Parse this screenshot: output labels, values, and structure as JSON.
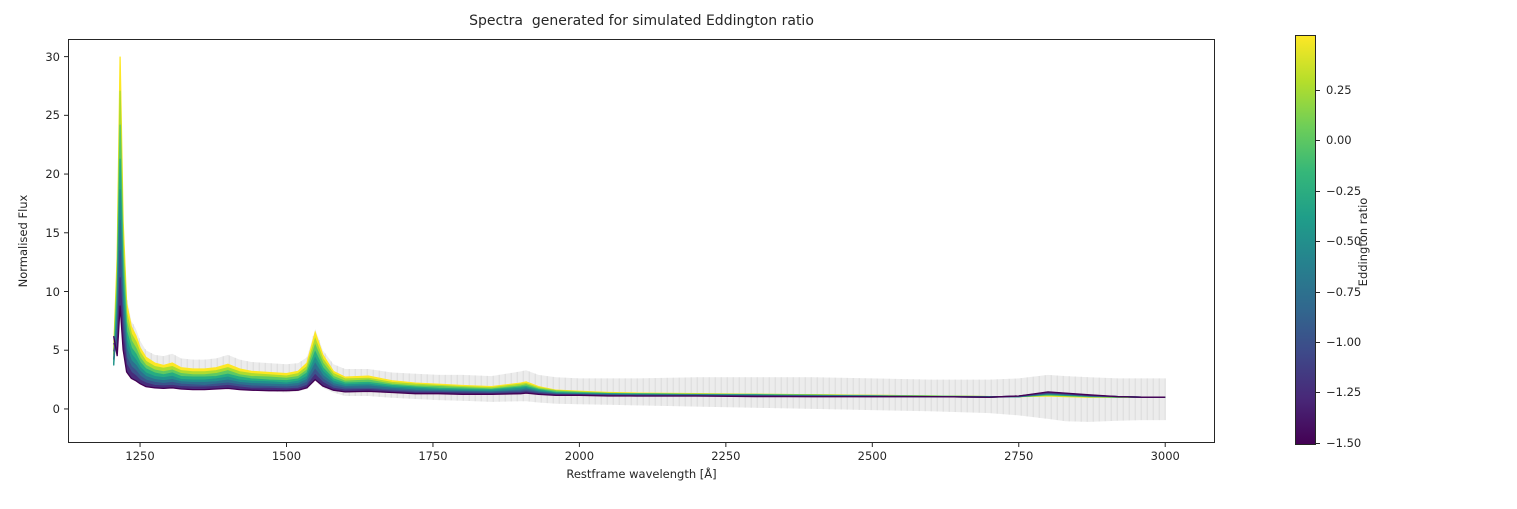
{
  "chart_data": {
    "type": "line",
    "title": "Spectra  generated for simulated Eddington ratio",
    "xlabel": "Restframe wavelength [Å]",
    "ylabel": "Normalised Flux",
    "xlim": [
      1127,
      3085
    ],
    "ylim": [
      -2.9,
      31.5
    ],
    "grid": false,
    "x_ticks": [
      1250,
      1500,
      1750,
      2000,
      2250,
      2500,
      2750,
      3000
    ],
    "y_ticks": [
      0,
      5,
      10,
      15,
      20,
      25,
      30
    ],
    "wavelengths": [
      1205,
      1211,
      1216,
      1221,
      1227,
      1235,
      1243,
      1250,
      1260,
      1275,
      1290,
      1305,
      1320,
      1340,
      1360,
      1380,
      1400,
      1420,
      1440,
      1470,
      1500,
      1520,
      1535,
      1549,
      1562,
      1580,
      1600,
      1640,
      1680,
      1720,
      1760,
      1800,
      1850,
      1900,
      1909,
      1930,
      1960,
      2000,
      2050,
      2100,
      2200,
      2300,
      2400,
      2500,
      2600,
      2700,
      2750,
      2800,
      2830,
      2870,
      2920,
      2960,
      3000
    ],
    "series": [
      {
        "name": "Eddington ratio 0.50",
        "eddington_ratio": 0.5,
        "color": "#fde725",
        "flux": [
          5.0,
          13.0,
          30.0,
          16.0,
          9.0,
          7.0,
          6.2,
          5.2,
          4.4,
          3.9,
          3.7,
          3.9,
          3.5,
          3.4,
          3.4,
          3.5,
          3.8,
          3.4,
          3.2,
          3.1,
          3.0,
          3.2,
          3.9,
          6.5,
          4.6,
          3.2,
          2.7,
          2.8,
          2.4,
          2.2,
          2.1,
          2.0,
          1.9,
          2.2,
          2.3,
          1.9,
          1.6,
          1.5,
          1.4,
          1.35,
          1.3,
          1.25,
          1.2,
          1.15,
          1.1,
          1.05,
          1.05,
          1.1,
          1.05,
          1.0,
          1.0,
          1.0,
          1.0
        ]
      },
      {
        "name": "Eddington ratio 0.25",
        "eddington_ratio": 0.25,
        "color": "#addc30",
        "flux": [
          4.6,
          11.8,
          27.1,
          14.5,
          8.2,
          6.4,
          5.7,
          4.8,
          4.05,
          3.6,
          3.45,
          3.6,
          3.25,
          3.15,
          3.15,
          3.25,
          3.5,
          3.15,
          3.0,
          2.9,
          2.8,
          3.0,
          3.6,
          5.95,
          4.25,
          3.0,
          2.55,
          2.6,
          2.25,
          2.1,
          2.0,
          1.9,
          1.8,
          2.1,
          2.15,
          1.8,
          1.55,
          1.45,
          1.35,
          1.3,
          1.25,
          1.25,
          1.2,
          1.15,
          1.1,
          1.05,
          1.05,
          1.15,
          1.1,
          1.05,
          1.0,
          1.0,
          1.0
        ]
      },
      {
        "name": "Eddington ratio 0.00",
        "eddington_ratio": 0.0,
        "color": "#5ec962",
        "flux": [
          4.2,
          10.6,
          24.2,
          13.0,
          7.4,
          5.8,
          5.15,
          4.35,
          3.7,
          3.3,
          3.15,
          3.3,
          3.0,
          2.9,
          2.9,
          3.0,
          3.25,
          2.9,
          2.75,
          2.7,
          2.6,
          2.75,
          3.3,
          5.4,
          3.9,
          2.75,
          2.35,
          2.45,
          2.1,
          1.95,
          1.9,
          1.8,
          1.7,
          1.95,
          2.05,
          1.7,
          1.5,
          1.4,
          1.3,
          1.3,
          1.25,
          1.2,
          1.15,
          1.1,
          1.1,
          1.05,
          1.05,
          1.2,
          1.15,
          1.05,
          1.0,
          1.0,
          1.0
        ]
      },
      {
        "name": "Eddington ratio -0.25",
        "eddington_ratio": -0.25,
        "color": "#27ad81",
        "flux": [
          3.8,
          9.4,
          21.3,
          11.5,
          6.6,
          5.2,
          4.65,
          3.95,
          3.4,
          3.05,
          2.9,
          3.05,
          2.75,
          2.7,
          2.7,
          2.75,
          2.95,
          2.7,
          2.55,
          2.45,
          2.4,
          2.55,
          3.05,
          4.85,
          3.5,
          2.55,
          2.2,
          2.25,
          2.0,
          1.85,
          1.75,
          1.7,
          1.65,
          1.85,
          1.9,
          1.65,
          1.4,
          1.35,
          1.3,
          1.25,
          1.2,
          1.2,
          1.15,
          1.1,
          1.05,
          1.05,
          1.05,
          1.25,
          1.15,
          1.1,
          1.05,
          1.0,
          1.0
        ]
      },
      {
        "name": "Eddington ratio -0.50",
        "eddington_ratio": -0.5,
        "color": "#21918c",
        "flux": [
          3.7,
          8.3,
          18.7,
          10.2,
          5.9,
          4.65,
          4.15,
          3.55,
          3.05,
          2.75,
          2.65,
          2.75,
          2.5,
          2.45,
          2.45,
          2.55,
          2.7,
          2.45,
          2.35,
          2.3,
          2.2,
          2.35,
          2.75,
          4.35,
          3.2,
          2.35,
          2.05,
          2.1,
          1.85,
          1.75,
          1.65,
          1.6,
          1.55,
          1.75,
          1.8,
          1.55,
          1.35,
          1.3,
          1.25,
          1.2,
          1.2,
          1.15,
          1.1,
          1.1,
          1.05,
          1.05,
          1.05,
          1.3,
          1.2,
          1.1,
          1.05,
          1.0,
          1.0
        ]
      },
      {
        "name": "Eddington ratio -0.75",
        "eddington_ratio": -0.75,
        "color": "#2c718e",
        "flux": [
          4.2,
          7.25,
          16.1,
          8.8,
          5.15,
          4.1,
          3.7,
          3.2,
          2.75,
          2.5,
          2.4,
          2.5,
          2.3,
          2.25,
          2.25,
          2.3,
          2.45,
          2.25,
          2.15,
          2.1,
          2.05,
          2.15,
          2.5,
          3.85,
          2.85,
          2.15,
          1.9,
          1.95,
          1.75,
          1.6,
          1.55,
          1.5,
          1.45,
          1.6,
          1.7,
          1.45,
          1.3,
          1.25,
          1.2,
          1.2,
          1.15,
          1.15,
          1.1,
          1.1,
          1.05,
          1.0,
          1.05,
          1.3,
          1.25,
          1.1,
          1.05,
          1.0,
          1.0
        ]
      },
      {
        "name": "Eddington ratio -1.00",
        "eddington_ratio": -1.0,
        "color": "#3b528b",
        "flux": [
          4.9,
          6.15,
          13.5,
          7.45,
          4.4,
          3.6,
          3.25,
          2.8,
          2.45,
          2.25,
          2.15,
          2.25,
          2.1,
          2.05,
          2.0,
          2.1,
          2.2,
          2.05,
          1.95,
          1.9,
          1.85,
          1.95,
          2.25,
          3.35,
          2.55,
          1.95,
          1.75,
          1.75,
          1.6,
          1.5,
          1.45,
          1.45,
          1.4,
          1.5,
          1.55,
          1.4,
          1.25,
          1.2,
          1.15,
          1.15,
          1.15,
          1.1,
          1.1,
          1.05,
          1.05,
          1.0,
          1.1,
          1.35,
          1.3,
          1.15,
          1.05,
          1.0,
          1.0
        ]
      },
      {
        "name": "Eddington ratio -1.25",
        "eddington_ratio": -1.25,
        "color": "#472d7b",
        "flux": [
          5.6,
          5.0,
          11.2,
          6.25,
          3.8,
          3.1,
          2.8,
          2.45,
          2.2,
          2.0,
          1.95,
          2.0,
          1.9,
          1.85,
          1.85,
          1.9,
          2.0,
          1.85,
          1.75,
          1.75,
          1.7,
          1.75,
          2.0,
          2.9,
          2.25,
          1.75,
          1.6,
          1.65,
          1.5,
          1.4,
          1.4,
          1.35,
          1.3,
          1.4,
          1.45,
          1.3,
          1.2,
          1.2,
          1.15,
          1.1,
          1.1,
          1.1,
          1.05,
          1.05,
          1.05,
          1.0,
          1.1,
          1.4,
          1.3,
          1.15,
          1.05,
          1.0,
          1.0
        ]
      },
      {
        "name": "Eddington ratio -1.50",
        "eddington_ratio": -1.5,
        "color": "#440154",
        "flux": [
          6.2,
          4.5,
          8.8,
          5.05,
          3.15,
          2.6,
          2.4,
          2.15,
          1.9,
          1.8,
          1.75,
          1.8,
          1.7,
          1.65,
          1.65,
          1.7,
          1.75,
          1.65,
          1.6,
          1.55,
          1.55,
          1.6,
          1.8,
          2.5,
          1.95,
          1.6,
          1.45,
          1.5,
          1.4,
          1.3,
          1.3,
          1.25,
          1.25,
          1.3,
          1.35,
          1.25,
          1.15,
          1.15,
          1.1,
          1.1,
          1.1,
          1.05,
          1.05,
          1.05,
          1.05,
          1.0,
          1.1,
          1.45,
          1.35,
          1.2,
          1.05,
          1.0,
          1.0
        ]
      }
    ],
    "error_band": {
      "fill": "#ececec",
      "hatch": "#dcdcdc",
      "upper": [
        6.5,
        12.0,
        22.0,
        13.0,
        9.5,
        7.5,
        6.8,
        5.8,
        5.0,
        4.6,
        4.5,
        4.7,
        4.3,
        4.2,
        4.2,
        4.3,
        4.6,
        4.2,
        4.0,
        3.9,
        3.8,
        3.9,
        4.4,
        6.8,
        5.0,
        3.8,
        3.4,
        3.4,
        3.1,
        3.0,
        2.9,
        2.9,
        2.8,
        3.2,
        3.3,
        2.9,
        2.7,
        2.6,
        2.6,
        2.6,
        2.7,
        2.7,
        2.7,
        2.6,
        2.5,
        2.5,
        2.6,
        2.9,
        2.8,
        2.7,
        2.6,
        2.6,
        2.6
      ],
      "lower": [
        3.5,
        6.0,
        8.0,
        6.0,
        4.5,
        3.5,
        3.2,
        2.8,
        2.4,
        2.1,
        2.0,
        2.1,
        1.9,
        1.8,
        1.8,
        1.8,
        1.9,
        1.8,
        1.6,
        1.5,
        1.4,
        1.5,
        1.7,
        2.4,
        1.8,
        1.4,
        1.1,
        1.1,
        0.95,
        0.85,
        0.75,
        0.7,
        0.6,
        0.65,
        0.65,
        0.55,
        0.45,
        0.4,
        0.35,
        0.3,
        0.2,
        0.1,
        0.0,
        -0.1,
        -0.2,
        -0.35,
        -0.55,
        -0.85,
        -1.05,
        -1.1,
        -1.0,
        -0.95,
        -0.95
      ]
    },
    "colorbar": {
      "label": "Eddington ratio",
      "vmin": -1.51,
      "vmax": 0.52,
      "ticks": [
        {
          "value": 0.25,
          "label": "0.25"
        },
        {
          "value": 0.0,
          "label": "0.00"
        },
        {
          "value": -0.25,
          "label": "−0.25"
        },
        {
          "value": -0.5,
          "label": "−0.50"
        },
        {
          "value": -0.75,
          "label": "−0.75"
        },
        {
          "value": -1.0,
          "label": "−1.00"
        },
        {
          "value": -1.25,
          "label": "−1.25"
        },
        {
          "value": -1.5,
          "label": "−1.50"
        }
      ],
      "gradient": [
        "#440154",
        "#482878",
        "#3e4989",
        "#31688e",
        "#26828e",
        "#1f9e89",
        "#35b779",
        "#6ece58",
        "#b5de2b",
        "#fde725"
      ]
    },
    "colors": {
      "spine": "#262626",
      "background": "#ffffff"
    }
  }
}
